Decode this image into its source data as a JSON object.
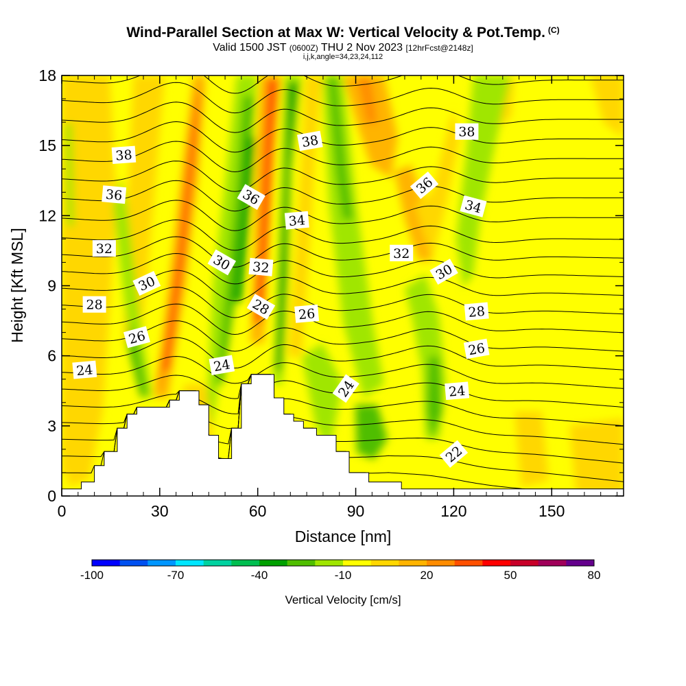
{
  "header": {
    "title": "Wind-Parallel Section at Max W: Vertical Velocity & Pot.Temp.",
    "copyright": "(C)",
    "valid_a": "Valid 1500 JST ",
    "valid_b": "(0600Z)",
    "valid_c": " THU 2 Nov 2023 ",
    "valid_d": "[12hrFcst@2148z]",
    "indices": "i,j,k,angle=34,23,24,112"
  },
  "chart_data": {
    "type": "heatmap",
    "title": "Wind-Parallel Section at Max W: Vertical Velocity & Pot.Temp.",
    "xlabel": "Distance [nm]",
    "ylabel": "Height [Kft MSL]",
    "xlim": [
      0,
      172
    ],
    "ylim": [
      0,
      18
    ],
    "xticks": [
      "0",
      "30",
      "60",
      "90",
      "120",
      "150"
    ],
    "yticks": [
      "0",
      "3",
      "6",
      "9",
      "12",
      "15",
      "18"
    ],
    "colorbar": {
      "label": "Vertical Velocity [cm/s]",
      "ticks": [
        "-100",
        "-70",
        "-40",
        "-10",
        "20",
        "50",
        "80"
      ],
      "colors": [
        "#0000ff",
        "#0050f0",
        "#0096ff",
        "#00e6ff",
        "#00d2a0",
        "#00be50",
        "#00a000",
        "#50be00",
        "#a0e600",
        "#ffff00",
        "#ffd700",
        "#ffb400",
        "#ff8c00",
        "#ff5000",
        "#ff0000",
        "#c80028",
        "#a0005a",
        "#64008c"
      ]
    },
    "terrain_kft": [
      [
        0,
        0.3
      ],
      [
        6,
        0.3
      ],
      [
        6,
        0.6
      ],
      [
        10,
        0.6
      ],
      [
        10,
        1.3
      ],
      [
        13,
        1.3
      ],
      [
        13,
        1.9
      ],
      [
        17,
        1.9
      ],
      [
        17,
        2.9
      ],
      [
        20,
        2.9
      ],
      [
        20,
        3.5
      ],
      [
        23,
        3.5
      ],
      [
        23,
        3.8
      ],
      [
        26,
        3.8
      ],
      [
        26,
        3.8
      ],
      [
        33,
        3.8
      ],
      [
        33,
        4.1
      ],
      [
        36,
        4.1
      ],
      [
        36,
        4.5
      ],
      [
        42,
        4.5
      ],
      [
        42,
        3.9
      ],
      [
        45,
        3.9
      ],
      [
        45,
        2.6
      ],
      [
        48,
        2.6
      ],
      [
        48,
        1.6
      ],
      [
        52,
        1.6
      ],
      [
        52,
        2.9
      ],
      [
        55,
        2.9
      ],
      [
        55,
        4.8
      ],
      [
        58,
        4.8
      ],
      [
        58,
        5.2
      ],
      [
        65,
        5.2
      ],
      [
        65,
        4.2
      ],
      [
        68,
        4.2
      ],
      [
        68,
        3.5
      ],
      [
        71,
        3.5
      ],
      [
        71,
        3.2
      ],
      [
        74,
        3.2
      ],
      [
        74,
        2.9
      ],
      [
        78,
        2.9
      ],
      [
        78,
        2.6
      ],
      [
        84,
        2.6
      ],
      [
        84,
        1.9
      ],
      [
        88,
        1.9
      ],
      [
        88,
        1.0
      ],
      [
        94,
        1.0
      ],
      [
        94,
        0.6
      ],
      [
        104,
        0.6
      ],
      [
        104,
        0.3
      ],
      [
        172,
        0.3
      ]
    ],
    "contour_labels": [
      {
        "text": "38",
        "x": 19,
        "y": 14.6,
        "rot": -4
      },
      {
        "text": "36",
        "x": 16,
        "y": 12.9,
        "rot": 5
      },
      {
        "text": "32",
        "x": 13,
        "y": 10.6,
        "rot": 0
      },
      {
        "text": "30",
        "x": 26,
        "y": 9.1,
        "rot": -25
      },
      {
        "text": "28",
        "x": 10,
        "y": 8.2,
        "rot": 0
      },
      {
        "text": "26",
        "x": 23,
        "y": 6.8,
        "rot": -15
      },
      {
        "text": "24",
        "x": 7,
        "y": 5.4,
        "rot": -5
      },
      {
        "text": "36",
        "x": 58,
        "y": 12.8,
        "rot": 30
      },
      {
        "text": "30",
        "x": 49,
        "y": 10.0,
        "rot": 30
      },
      {
        "text": "32",
        "x": 61,
        "y": 9.8,
        "rot": 5
      },
      {
        "text": "28",
        "x": 61,
        "y": 8.1,
        "rot": 30
      },
      {
        "text": "24",
        "x": 49,
        "y": 5.6,
        "rot": -10
      },
      {
        "text": "38",
        "x": 76,
        "y": 15.2,
        "rot": -10
      },
      {
        "text": "34",
        "x": 72,
        "y": 11.8,
        "rot": -5
      },
      {
        "text": "26",
        "x": 75,
        "y": 7.8,
        "rot": -5
      },
      {
        "text": "24",
        "x": 87,
        "y": 4.6,
        "rot": -55
      },
      {
        "text": "38",
        "x": 124,
        "y": 15.6,
        "rot": 0
      },
      {
        "text": "36",
        "x": 111,
        "y": 13.3,
        "rot": -40
      },
      {
        "text": "32",
        "x": 104,
        "y": 10.4,
        "rot": 0
      },
      {
        "text": "30",
        "x": 117,
        "y": 9.6,
        "rot": -30
      },
      {
        "text": "34",
        "x": 126,
        "y": 12.4,
        "rot": 15
      },
      {
        "text": "28",
        "x": 127,
        "y": 7.9,
        "rot": -5
      },
      {
        "text": "26",
        "x": 127,
        "y": 6.3,
        "rot": -10
      },
      {
        "text": "24",
        "x": 121,
        "y": 4.5,
        "rot": -5
      },
      {
        "text": "22",
        "x": 120,
        "y": 1.8,
        "rot": -40
      }
    ]
  }
}
